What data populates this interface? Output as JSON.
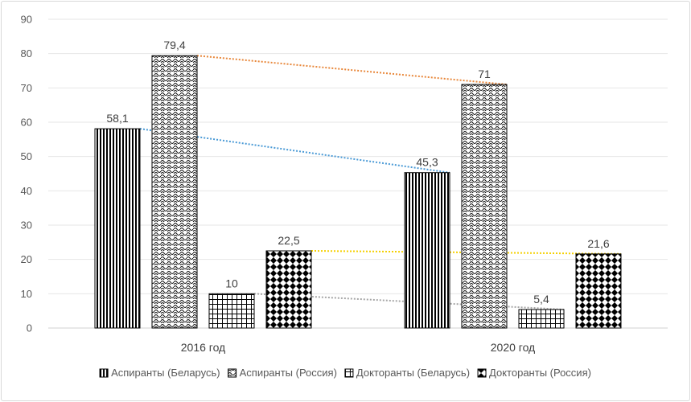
{
  "chart_data": {
    "type": "bar",
    "title": "",
    "xlabel": "",
    "ylabel": "",
    "categories": [
      "2016 год",
      "2020 год"
    ],
    "ylim": [
      0,
      90
    ],
    "yticks": [
      0,
      10,
      20,
      30,
      40,
      50,
      60,
      70,
      80,
      90
    ],
    "grid": true,
    "legend_position": "bottom",
    "series": [
      {
        "name": "Аспиранты (Беларусь)",
        "values": [
          58.1,
          45.3
        ],
        "labels": [
          "58,1",
          "45,3"
        ],
        "pattern": "vertical-lines",
        "trend_color": "#4a9ad6"
      },
      {
        "name": "Аспиранты (Россия)",
        "values": [
          79.4,
          71
        ],
        "labels": [
          "79,4",
          "71"
        ],
        "pattern": "wave",
        "trend_color": "#e8873a"
      },
      {
        "name": "Докторанты (Беларусь)",
        "values": [
          10,
          5.4
        ],
        "labels": [
          "10",
          "5,4"
        ],
        "pattern": "grid",
        "trend_color": "#a6a6a6"
      },
      {
        "name": "Докторанты (Россия)",
        "values": [
          22.5,
          21.6
        ],
        "labels": [
          "22,5",
          "21,6"
        ],
        "pattern": "diamonds",
        "trend_color": "#f5d000"
      }
    ]
  }
}
